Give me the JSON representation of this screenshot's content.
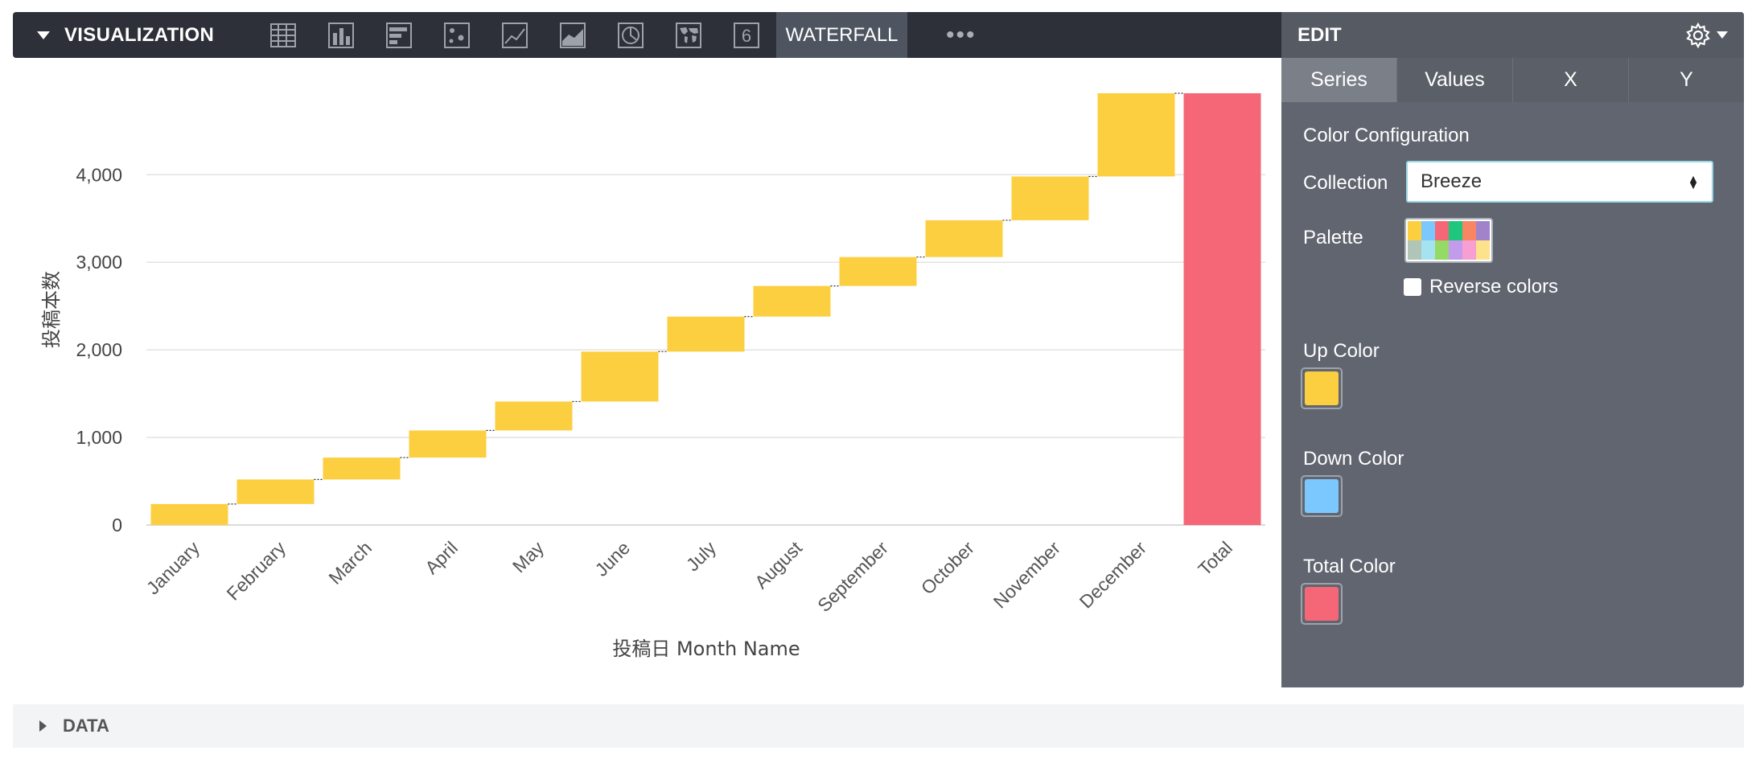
{
  "toolbar": {
    "title": "VISUALIZATION",
    "icons": [
      "table-icon",
      "column-chart-icon",
      "bar-chart-icon",
      "scatter-icon",
      "line-chart-icon",
      "area-chart-icon",
      "pie-chart-icon",
      "map-icon",
      "single-value-icon"
    ],
    "single_value_glyph": "6",
    "active_tab": "WATERFALL",
    "more": "•••"
  },
  "edit": {
    "title": "EDIT",
    "tabs": [
      "Series",
      "Values",
      "X",
      "Y"
    ],
    "color_configuration": "Color Configuration",
    "collection_label": "Collection",
    "collection_value": "Breeze",
    "palette_label": "Palette",
    "palette_colors": [
      "#fccf41",
      "#7bc8ff",
      "#f56776",
      "#1ec77c",
      "#f98662",
      "#a083cb",
      "#b0c4b8",
      "#a6e3f0",
      "#95d967",
      "#c29bec",
      "#f79ed2",
      "#fee28b"
    ],
    "reverse_label": "Reverse colors",
    "up_label": "Up Color",
    "up_color": "#fccf41",
    "down_label": "Down Color",
    "down_color": "#7bc8ff",
    "total_label": "Total Color",
    "total_color": "#f56776"
  },
  "data_section": {
    "title": "DATA"
  },
  "chart_data": {
    "type": "waterfall",
    "categories": [
      "January",
      "February",
      "March",
      "April",
      "May",
      "June",
      "July",
      "August",
      "September",
      "October",
      "November",
      "December",
      "Total"
    ],
    "values": [
      240,
      280,
      250,
      310,
      330,
      570,
      400,
      350,
      330,
      420,
      500,
      950,
      4930
    ],
    "ylabel": "投稿本数",
    "xlabel": "投稿日 Month Name",
    "yticks": [
      0,
      1000,
      2000,
      3000,
      4000
    ],
    "ytick_labels": [
      "0",
      "1,000",
      "2,000",
      "3,000",
      "4,000"
    ],
    "ylim": [
      0,
      4930
    ],
    "up_color": "#fccf41",
    "total_color": "#f56776"
  }
}
